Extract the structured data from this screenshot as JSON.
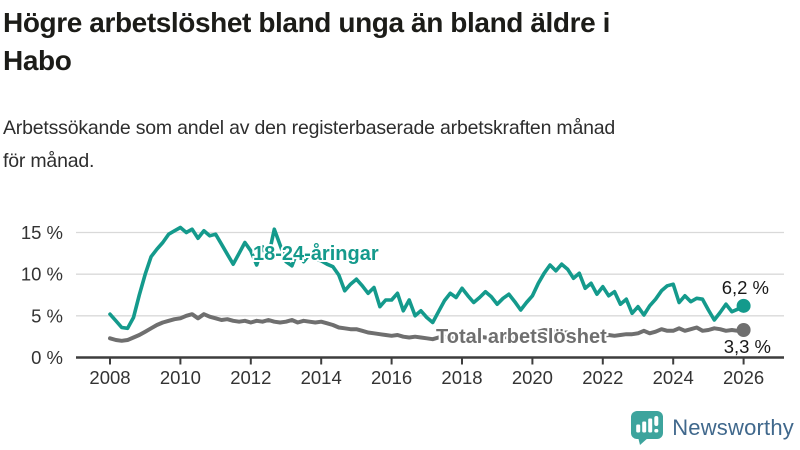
{
  "header": {
    "title_lines": [
      "Högre arbetslöshet bland unga än bland äldre i",
      "Habo"
    ],
    "subtitle_lines": [
      "Arbetssökande som andel av den registerbaserade arbetskraften månad",
      "för månad."
    ]
  },
  "chart_data": {
    "type": "line",
    "title": "Högre arbetslöshet bland unga än bland äldre i Habo",
    "subtitle": "Arbetssökande som andel av den registerbaserade arbetskraften månad för månad.",
    "unit": "%",
    "grid": "horizontal",
    "legend_position": "inline-labels-on-lines",
    "x_start": 2008.0,
    "x_step": 0.16667,
    "xlim": [
      2007.0,
      2027.2
    ],
    "ylim": [
      0,
      17
    ],
    "x_ticks": [
      2008,
      2010,
      2012,
      2014,
      2016,
      2018,
      2020,
      2022,
      2024,
      2026
    ],
    "y_ticks": [
      0,
      5,
      10,
      15
    ],
    "y_tick_labels": [
      "0 %",
      "5 %",
      "10 %",
      "15 %"
    ],
    "series": [
      {
        "name": "Total arbetslöshet",
        "color": "#6f6f6f",
        "end_label": "3,3 %",
        "end_value": 3.3,
        "values": [
          2.3,
          2.1,
          2.0,
          2.1,
          2.4,
          2.7,
          3.1,
          3.5,
          3.9,
          4.2,
          4.4,
          4.6,
          4.7,
          5.0,
          5.2,
          4.7,
          5.2,
          4.9,
          4.7,
          4.5,
          4.6,
          4.4,
          4.3,
          4.4,
          4.2,
          4.4,
          4.3,
          4.5,
          4.3,
          4.2,
          4.3,
          4.5,
          4.2,
          4.4,
          4.3,
          4.2,
          4.3,
          4.1,
          3.9,
          3.6,
          3.5,
          3.4,
          3.4,
          3.2,
          3.0,
          2.9,
          2.8,
          2.7,
          2.6,
          2.7,
          2.5,
          2.4,
          2.5,
          2.4,
          2.3,
          2.2,
          2.4,
          2.5,
          2.4,
          2.3,
          2.4,
          2.3,
          2.4,
          2.5,
          2.4,
          2.3,
          2.3,
          2.4,
          2.5,
          2.4,
          2.3,
          2.5,
          2.8,
          3.1,
          3.3,
          3.2,
          3.1,
          3.0,
          3.0,
          2.9,
          2.8,
          2.7,
          2.8,
          2.7,
          2.6,
          2.7,
          2.6,
          2.7,
          2.8,
          2.8,
          2.9,
          3.2,
          2.9,
          3.1,
          3.4,
          3.2,
          3.2,
          3.5,
          3.2,
          3.4,
          3.6,
          3.2,
          3.3,
          3.5,
          3.4,
          3.2,
          3.3,
          3.2,
          3.3
        ]
      },
      {
        "name": "18-24-åringar",
        "color": "#149a8c",
        "end_label": "6,2 %",
        "end_value": 6.2,
        "values": [
          5.2,
          4.4,
          3.6,
          3.5,
          4.8,
          7.5,
          10.0,
          12.1,
          13.0,
          13.8,
          14.8,
          15.2,
          15.6,
          15.0,
          15.4,
          14.3,
          15.2,
          14.6,
          14.8,
          13.6,
          12.4,
          11.2,
          12.5,
          13.8,
          12.8,
          11.1,
          13.3,
          12.1,
          15.4,
          13.5,
          11.5,
          11.0,
          12.8,
          11.5,
          12.4,
          11.8,
          11.6,
          11.2,
          10.9,
          9.9,
          8.0,
          8.8,
          9.4,
          8.6,
          7.7,
          8.4,
          6.1,
          6.9,
          6.9,
          7.7,
          5.6,
          6.9,
          5.0,
          5.6,
          4.8,
          4.2,
          5.5,
          6.8,
          7.7,
          7.2,
          8.3,
          7.4,
          6.6,
          7.2,
          7.9,
          7.3,
          6.4,
          7.1,
          7.6,
          6.7,
          5.7,
          6.6,
          7.4,
          8.9,
          10.1,
          11.1,
          10.4,
          11.2,
          10.6,
          9.5,
          10.1,
          8.3,
          8.9,
          7.6,
          8.5,
          7.4,
          7.9,
          6.4,
          7.0,
          5.3,
          6.1,
          5.1,
          6.2,
          7.0,
          8.0,
          8.6,
          8.8,
          6.6,
          7.4,
          6.7,
          7.1,
          7.0,
          5.7,
          4.5,
          5.4,
          6.4,
          5.5,
          5.8,
          6.2
        ]
      }
    ],
    "colors": {
      "accent_teal": "#149a8c",
      "line_gray": "#6f6f6f",
      "gridline": "#d9d9d9",
      "axis": "#3d3d3d",
      "text": "#1c1c18"
    }
  },
  "footer": {
    "brand": "Newsworthy",
    "logo_icon": "bar-chart-speech-bubble-icon",
    "icon_color": "#3da49d",
    "brand_color": "#40688c"
  }
}
